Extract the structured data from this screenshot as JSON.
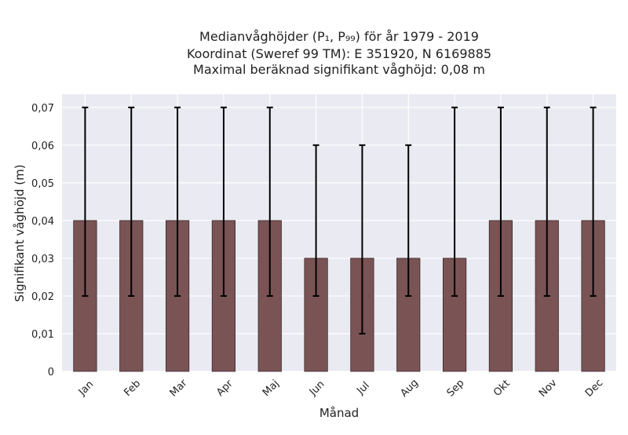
{
  "chart_data": {
    "type": "bar",
    "title_lines": [
      "Medianvåghöjder (P₁, P₉₉) för år 1979 - 2019",
      "Koordinat (Sweref 99 TM): E 351920, N 6169885",
      "Maximal beräknad signifikant våghöjd: 0,08 m"
    ],
    "xlabel": "Månad",
    "ylabel": "Signifikant våghöjd (m)",
    "categories": [
      "Jan",
      "Feb",
      "Mar",
      "Apr",
      "Maj",
      "Jun",
      "Jul",
      "Aug",
      "Sep",
      "Okt",
      "Nov",
      "Dec"
    ],
    "values": [
      0.04,
      0.04,
      0.04,
      0.04,
      0.04,
      0.03,
      0.03,
      0.03,
      0.03,
      0.04,
      0.04,
      0.04
    ],
    "p1": [
      0.02,
      0.02,
      0.02,
      0.02,
      0.02,
      0.02,
      0.01,
      0.02,
      0.02,
      0.02,
      0.02,
      0.02
    ],
    "p99": [
      0.07,
      0.07,
      0.07,
      0.07,
      0.07,
      0.06,
      0.06,
      0.06,
      0.07,
      0.07,
      0.07,
      0.07
    ],
    "ylim": [
      0,
      0.0735
    ],
    "yticks": [
      0,
      0.01,
      0.02,
      0.03,
      0.04,
      0.05,
      0.06,
      0.07
    ],
    "ytick_labels": [
      "0",
      "0,01",
      "0,02",
      "0,03",
      "0,04",
      "0,05",
      "0,06",
      "0,07"
    ],
    "grid": true,
    "colors": {
      "bar": "#7a5355",
      "bar_edge": "#3a2a2a",
      "errorbar": "#000000",
      "plot_bg": "#eaeaf2",
      "grid": "#ffffff"
    }
  }
}
